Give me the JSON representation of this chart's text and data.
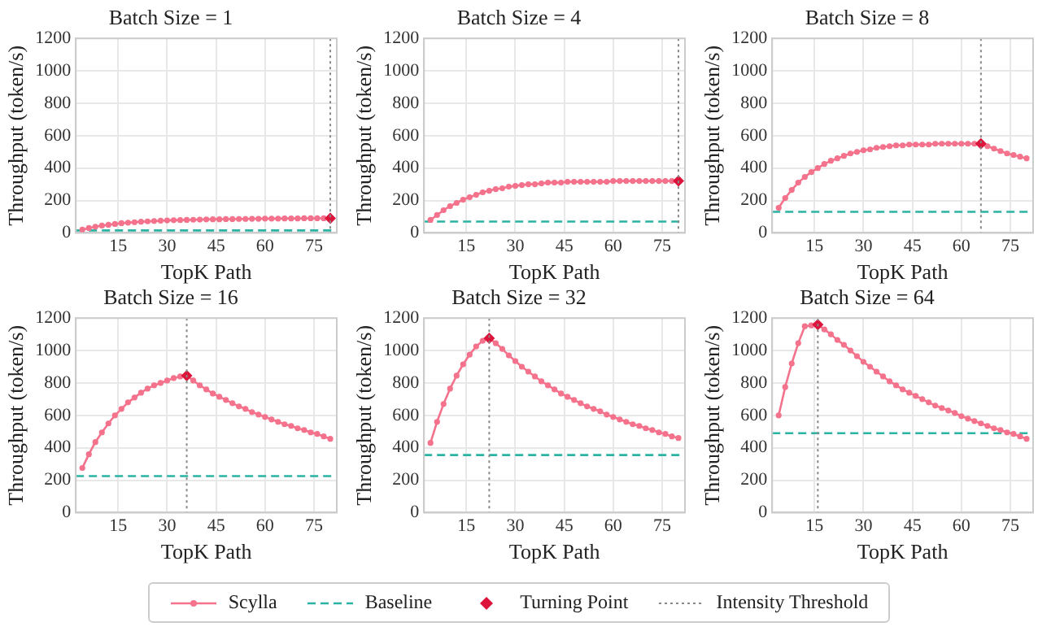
{
  "chart_data": [
    {
      "type": "line",
      "title": "Batch Size = 1",
      "xlabel": "TopK Path",
      "ylabel": "Throughput (token/s)",
      "xlim": [
        2,
        82
      ],
      "xticks": [
        15,
        30,
        45,
        60,
        75
      ],
      "ylim": [
        0,
        1200
      ],
      "yticks": [
        0,
        200,
        400,
        600,
        800,
        1000,
        1200
      ],
      "grid": true,
      "legend": "bottom",
      "x": [
        4,
        6,
        8,
        10,
        12,
        14,
        16,
        18,
        20,
        22,
        24,
        26,
        28,
        30,
        32,
        34,
        36,
        38,
        40,
        42,
        44,
        46,
        48,
        50,
        52,
        54,
        56,
        58,
        60,
        62,
        64,
        66,
        68,
        70,
        72,
        74,
        76,
        78,
        80
      ],
      "series": [
        {
          "name": "Scylla",
          "type": "line",
          "color": "#f4728c",
          "marker": "circle",
          "line_style": "solid",
          "values": [
            20,
            30,
            38,
            45,
            50,
            55,
            60,
            63,
            66,
            69,
            71,
            73,
            75,
            77,
            78,
            79,
            80,
            81,
            82,
            83,
            84,
            84,
            85,
            85,
            86,
            86,
            87,
            87,
            88,
            88,
            88,
            89,
            89,
            89,
            90,
            90,
            90,
            90,
            90
          ]
        },
        {
          "name": "Baseline",
          "type": "line",
          "color": "#2ab3a3",
          "marker": "none",
          "line_style": "dashed",
          "x": [
            2,
            82
          ],
          "values": [
            15,
            15
          ]
        },
        {
          "name": "Turning Point",
          "type": "scatter",
          "color": "#dc143c",
          "marker": "diamond",
          "x": [
            80
          ],
          "values": [
            90
          ]
        }
      ],
      "ref_lines": [
        {
          "axis": "x",
          "value": 80,
          "label": "Intensity Threshold",
          "color": "#888888",
          "line_style": "dotted"
        }
      ]
    },
    {
      "type": "line",
      "title": "Batch Size = 4",
      "xlabel": "TopK Path",
      "ylabel": "Throughput (token/s)",
      "xlim": [
        2,
        82
      ],
      "xticks": [
        15,
        30,
        45,
        60,
        75
      ],
      "ylim": [
        0,
        1200
      ],
      "yticks": [
        0,
        200,
        400,
        600,
        800,
        1000,
        1200
      ],
      "grid": true,
      "x": [
        4,
        6,
        8,
        10,
        12,
        14,
        16,
        18,
        20,
        22,
        24,
        26,
        28,
        30,
        32,
        34,
        36,
        38,
        40,
        42,
        44,
        46,
        48,
        50,
        52,
        54,
        56,
        58,
        60,
        62,
        64,
        66,
        68,
        70,
        72,
        74,
        76,
        78,
        80
      ],
      "series": [
        {
          "type": "line",
          "color": "#f4728c",
          "marker": "circle",
          "line_style": "solid",
          "values": [
            80,
            110,
            140,
            165,
            185,
            205,
            220,
            235,
            250,
            260,
            270,
            275,
            285,
            290,
            295,
            300,
            300,
            305,
            310,
            310,
            310,
            315,
            315,
            315,
            315,
            315,
            315,
            315,
            320,
            320,
            320,
            320,
            320,
            320,
            320,
            320,
            320,
            320,
            320
          ]
        },
        {
          "type": "line",
          "color": "#2ab3a3",
          "marker": "none",
          "line_style": "dashed",
          "x": [
            2,
            82
          ],
          "values": [
            70,
            70
          ]
        },
        {
          "type": "scatter",
          "color": "#dc143c",
          "marker": "diamond",
          "x": [
            80
          ],
          "values": [
            320
          ]
        }
      ],
      "ref_lines": [
        {
          "axis": "x",
          "value": 80,
          "color": "#888888",
          "line_style": "dotted"
        }
      ]
    },
    {
      "type": "line",
      "title": "Batch Size = 8",
      "xlabel": "TopK Path",
      "ylabel": "Throughput (token/s)",
      "xlim": [
        2,
        82
      ],
      "xticks": [
        15,
        30,
        45,
        60,
        75
      ],
      "ylim": [
        0,
        1200
      ],
      "yticks": [
        0,
        200,
        400,
        600,
        800,
        1000,
        1200
      ],
      "grid": true,
      "x": [
        4,
        6,
        8,
        10,
        12,
        14,
        16,
        18,
        20,
        22,
        24,
        26,
        28,
        30,
        32,
        34,
        36,
        38,
        40,
        42,
        44,
        46,
        48,
        50,
        52,
        54,
        56,
        58,
        60,
        62,
        64,
        66,
        68,
        70,
        72,
        74,
        76,
        78,
        80
      ],
      "series": [
        {
          "type": "line",
          "color": "#f4728c",
          "marker": "circle",
          "line_style": "solid",
          "values": [
            155,
            215,
            265,
            310,
            345,
            375,
            400,
            425,
            445,
            460,
            475,
            490,
            500,
            510,
            515,
            525,
            530,
            535,
            540,
            540,
            545,
            545,
            545,
            545,
            550,
            550,
            550,
            550,
            550,
            550,
            550,
            550,
            535,
            520,
            505,
            490,
            480,
            470,
            460
          ]
        },
        {
          "type": "line",
          "color": "#2ab3a3",
          "marker": "none",
          "line_style": "dashed",
          "x": [
            2,
            82
          ],
          "values": [
            130,
            130
          ]
        },
        {
          "type": "scatter",
          "color": "#dc143c",
          "marker": "diamond",
          "x": [
            66
          ],
          "values": [
            550
          ]
        }
      ],
      "ref_lines": [
        {
          "axis": "x",
          "value": 66,
          "color": "#888888",
          "line_style": "dotted"
        }
      ]
    },
    {
      "type": "line",
      "title": "Batch Size = 16",
      "xlabel": "TopK Path",
      "ylabel": "Throughput (token/s)",
      "xlim": [
        2,
        82
      ],
      "xticks": [
        15,
        30,
        45,
        60,
        75
      ],
      "ylim": [
        0,
        1200
      ],
      "yticks": [
        0,
        200,
        400,
        600,
        800,
        1000,
        1200
      ],
      "grid": true,
      "x": [
        4,
        6,
        8,
        10,
        12,
        14,
        16,
        18,
        20,
        22,
        24,
        26,
        28,
        30,
        32,
        34,
        36,
        38,
        40,
        42,
        44,
        46,
        48,
        50,
        52,
        54,
        56,
        58,
        60,
        62,
        64,
        66,
        68,
        70,
        72,
        74,
        76,
        78,
        80
      ],
      "series": [
        {
          "type": "line",
          "color": "#f4728c",
          "marker": "circle",
          "line_style": "solid",
          "values": [
            275,
            360,
            435,
            495,
            550,
            600,
            640,
            680,
            710,
            740,
            765,
            785,
            800,
            815,
            830,
            840,
            845,
            815,
            785,
            760,
            735,
            715,
            695,
            675,
            655,
            640,
            620,
            605,
            590,
            575,
            560,
            545,
            535,
            520,
            510,
            495,
            485,
            470,
            455
          ]
        },
        {
          "type": "line",
          "color": "#2ab3a3",
          "marker": "none",
          "line_style": "dashed",
          "x": [
            2,
            82
          ],
          "values": [
            225,
            225
          ]
        },
        {
          "type": "scatter",
          "color": "#dc143c",
          "marker": "diamond",
          "x": [
            36
          ],
          "values": [
            845
          ]
        }
      ],
      "ref_lines": [
        {
          "axis": "x",
          "value": 36,
          "color": "#888888",
          "line_style": "dotted"
        }
      ]
    },
    {
      "type": "line",
      "title": "Batch Size = 32",
      "xlabel": "TopK Path",
      "ylabel": "Throughput (token/s)",
      "xlim": [
        2,
        82
      ],
      "xticks": [
        15,
        30,
        45,
        60,
        75
      ],
      "ylim": [
        0,
        1200
      ],
      "yticks": [
        0,
        200,
        400,
        600,
        800,
        1000,
        1200
      ],
      "grid": true,
      "x": [
        4,
        6,
        8,
        10,
        12,
        14,
        16,
        18,
        20,
        22,
        24,
        26,
        28,
        30,
        32,
        34,
        36,
        38,
        40,
        42,
        44,
        46,
        48,
        50,
        52,
        54,
        56,
        58,
        60,
        62,
        64,
        66,
        68,
        70,
        72,
        74,
        76,
        78,
        80
      ],
      "series": [
        {
          "type": "line",
          "color": "#f4728c",
          "marker": "circle",
          "line_style": "solid",
          "values": [
            430,
            560,
            670,
            765,
            845,
            915,
            975,
            1025,
            1060,
            1075,
            1045,
            1010,
            970,
            935,
            900,
            870,
            840,
            810,
            785,
            760,
            735,
            715,
            695,
            675,
            655,
            640,
            625,
            605,
            590,
            575,
            560,
            545,
            535,
            520,
            510,
            495,
            485,
            470,
            460
          ]
        },
        {
          "type": "line",
          "color": "#2ab3a3",
          "marker": "none",
          "line_style": "dashed",
          "x": [
            2,
            82
          ],
          "values": [
            355,
            355
          ]
        },
        {
          "type": "scatter",
          "color": "#dc143c",
          "marker": "diamond",
          "x": [
            22
          ],
          "values": [
            1075
          ]
        }
      ],
      "ref_lines": [
        {
          "axis": "x",
          "value": 22,
          "color": "#888888",
          "line_style": "dotted"
        }
      ]
    },
    {
      "type": "line",
      "title": "Batch Size = 64",
      "xlabel": "TopK Path",
      "ylabel": "Throughput (token/s)",
      "xlim": [
        2,
        82
      ],
      "xticks": [
        15,
        30,
        45,
        60,
        75
      ],
      "ylim": [
        0,
        1200
      ],
      "yticks": [
        0,
        200,
        400,
        600,
        800,
        1000,
        1200
      ],
      "grid": true,
      "x": [
        4,
        6,
        8,
        10,
        12,
        14,
        16,
        18,
        20,
        22,
        24,
        26,
        28,
        30,
        32,
        34,
        36,
        38,
        40,
        42,
        44,
        46,
        48,
        50,
        52,
        54,
        56,
        58,
        60,
        62,
        64,
        66,
        68,
        70,
        72,
        74,
        76,
        78,
        80
      ],
      "series": [
        {
          "type": "line",
          "color": "#f4728c",
          "marker": "circle",
          "line_style": "solid",
          "values": [
            600,
            775,
            920,
            1045,
            1150,
            1155,
            1160,
            1130,
            1100,
            1065,
            1035,
            1000,
            965,
            930,
            900,
            870,
            840,
            810,
            785,
            760,
            740,
            720,
            700,
            680,
            660,
            645,
            630,
            615,
            595,
            580,
            565,
            550,
            535,
            520,
            510,
            495,
            485,
            470,
            455
          ]
        },
        {
          "type": "line",
          "color": "#2ab3a3",
          "marker": "none",
          "line_style": "dashed",
          "x": [
            2,
            82
          ],
          "values": [
            490,
            490
          ]
        },
        {
          "type": "scatter",
          "color": "#dc143c",
          "marker": "diamond",
          "x": [
            16
          ],
          "values": [
            1160
          ]
        }
      ],
      "ref_lines": [
        {
          "axis": "x",
          "value": 16,
          "color": "#888888",
          "line_style": "dotted"
        }
      ]
    }
  ]
}
